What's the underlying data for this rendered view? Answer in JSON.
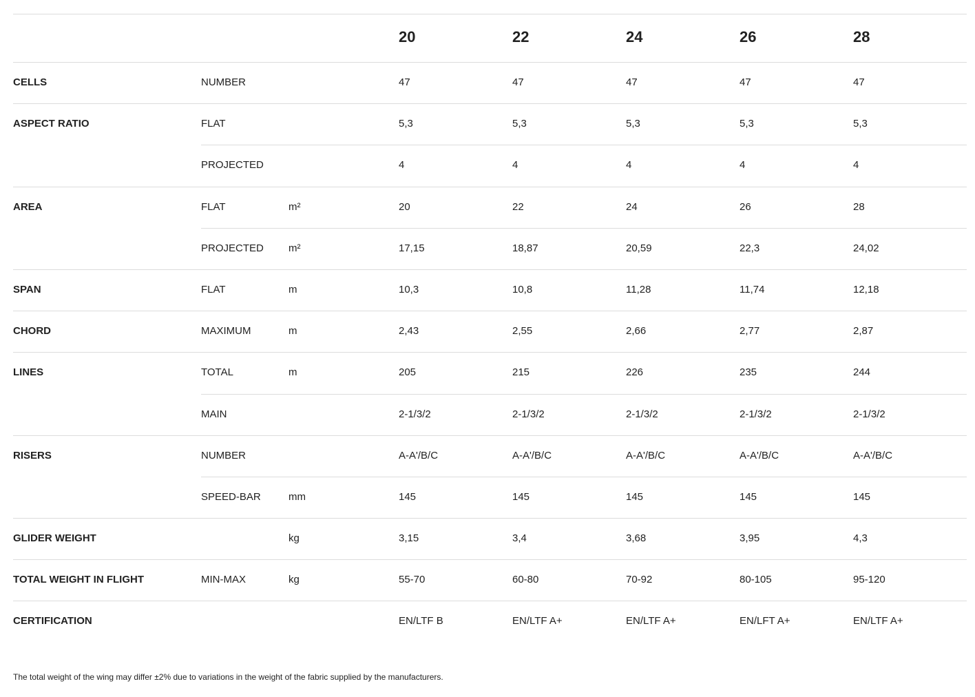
{
  "sizes": [
    "20",
    "22",
    "24",
    "26",
    "28"
  ],
  "rows": [
    {
      "group": "CELLS",
      "label": "NUMBER",
      "unit": "",
      "values": [
        "47",
        "47",
        "47",
        "47",
        "47"
      ]
    },
    {
      "group": "ASPECT RATIO",
      "label": "FLAT",
      "unit": "",
      "values": [
        "5,3",
        "5,3",
        "5,3",
        "5,3",
        "5,3"
      ]
    },
    {
      "group": "",
      "label": "PROJECTED",
      "unit": "",
      "values": [
        "4",
        "4",
        "4",
        "4",
        "4"
      ]
    },
    {
      "group": "AREA",
      "label": "FLAT",
      "unit": "m²",
      "values": [
        "20",
        "22",
        "24",
        "26",
        "28"
      ]
    },
    {
      "group": "",
      "label": "PROJECTED",
      "unit": "m²",
      "values": [
        "17,15",
        "18,87",
        "20,59",
        "22,3",
        "24,02"
      ]
    },
    {
      "group": "SPAN",
      "label": "FLAT",
      "unit": "m",
      "values": [
        "10,3",
        "10,8",
        "11,28",
        "11,74",
        "12,18"
      ]
    },
    {
      "group": "CHORD",
      "label": "MAXIMUM",
      "unit": "m",
      "values": [
        "2,43",
        "2,55",
        "2,66",
        "2,77",
        "2,87"
      ]
    },
    {
      "group": "LINES",
      "label": "TOTAL",
      "unit": "m",
      "values": [
        "205",
        "215",
        "226",
        "235",
        "244"
      ]
    },
    {
      "group": "",
      "label": "MAIN",
      "unit": "",
      "values": [
        "2-1/3/2",
        "2-1/3/2",
        "2-1/3/2",
        "2-1/3/2",
        "2-1/3/2"
      ]
    },
    {
      "group": "RISERS",
      "label": "NUMBER",
      "unit": "",
      "values": [
        "A-A'/B/C",
        "A-A'/B/C",
        "A-A'/B/C",
        "A-A'/B/C",
        "A-A'/B/C"
      ]
    },
    {
      "group": "",
      "label": "SPEED-BAR",
      "unit": "mm",
      "values": [
        "145",
        "145",
        "145",
        "145",
        "145"
      ]
    },
    {
      "group": "GLIDER WEIGHT",
      "label": "",
      "unit": "kg",
      "values": [
        "3,15",
        "3,4",
        "3,68",
        "3,95",
        "4,3"
      ]
    },
    {
      "group": "TOTAL WEIGHT IN FLIGHT",
      "label": "MIN-MAX",
      "unit": "kg",
      "values": [
        "55-70",
        "60-80",
        "70-92",
        "80-105",
        "95-120"
      ]
    },
    {
      "group": "CERTIFICATION",
      "label": "",
      "unit": "",
      "values": [
        "EN/LTF B",
        "EN/LTF A+",
        "EN/LTF A+",
        "EN/LFT A+",
        "EN/LTF A+"
      ]
    }
  ],
  "footnote": "The total weight of the wing may differ ±2% due to variations in the weight of the fabric supplied by the manufacturers."
}
